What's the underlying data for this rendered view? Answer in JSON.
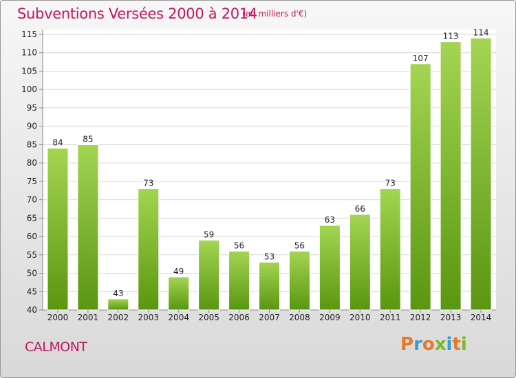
{
  "header": {
    "title": "Subventions Versées 2000 à 2014",
    "subtitle": "(en milliers d'€)"
  },
  "footer": {
    "commune": "CALMONT",
    "brand": "Proxiti",
    "brand_colors": [
      "#e8772a",
      "#3a9bd5",
      "#e8772a",
      "#7ab929",
      "#3a9bd5",
      "#e8772a",
      "#7ab929"
    ]
  },
  "chart_data": {
    "type": "bar",
    "categories": [
      "2000",
      "2001",
      "2002",
      "2003",
      "2004",
      "2005",
      "2006",
      "2007",
      "2008",
      "2009",
      "2010",
      "2011",
      "2012",
      "2013",
      "2014"
    ],
    "values": [
      84,
      85,
      43,
      73,
      49,
      59,
      56,
      53,
      56,
      63,
      66,
      73,
      107,
      113,
      114
    ],
    "ylim": [
      40,
      115
    ],
    "yticks": [
      40,
      45,
      50,
      55,
      60,
      65,
      70,
      75,
      80,
      85,
      90,
      95,
      100,
      105,
      110,
      115
    ],
    "grid": true,
    "colors": {
      "bar_top": "#9dd04a",
      "bar_bottom": "#5e9b12",
      "text": "#c0185e"
    }
  }
}
